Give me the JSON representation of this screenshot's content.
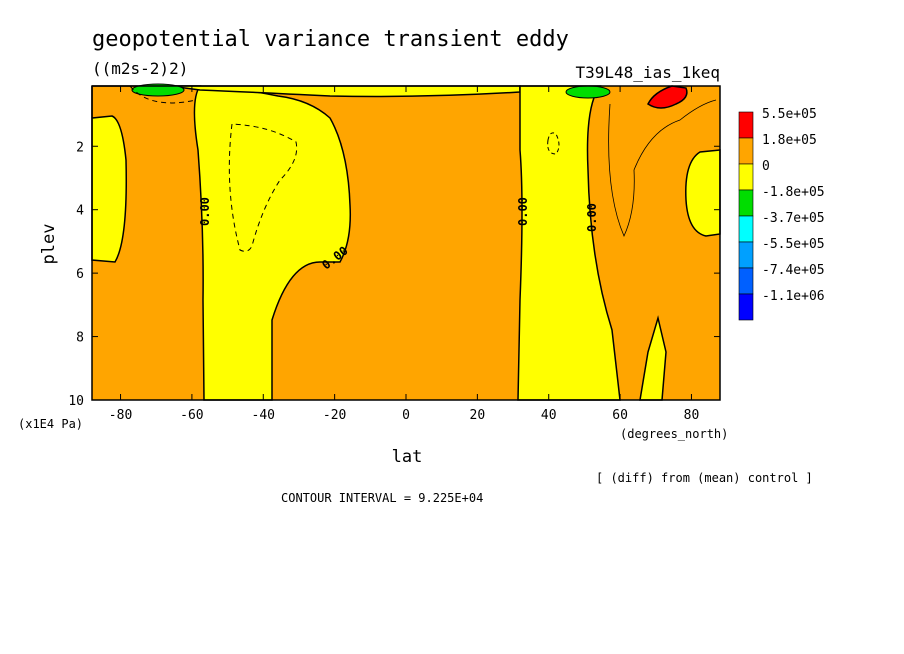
{
  "figure": {
    "title": "geopotential variance transient eddy",
    "units": "((m2s-2)2)",
    "run_id": "T39L48_ias_1keq",
    "contour_interval": "CONTOUR INTERVAL = 9.225E+04",
    "diff_note": "[ (diff) from (mean) control ]"
  },
  "chart_data": {
    "type": "heatmap",
    "title": "geopotential variance transient eddy",
    "xlabel": "lat",
    "xunits": "(degrees_north)",
    "ylabel": "plev",
    "yunits": "(x1E4 Pa)",
    "xlim": [
      -88,
      88
    ],
    "ylim": [
      10,
      0.1
    ],
    "x_ticks": [
      -80,
      -60,
      -40,
      -20,
      0,
      20,
      40,
      60,
      80
    ],
    "y_ticks": [
      2,
      4,
      6,
      8,
      10
    ],
    "contour_labels": [
      "0.00",
      "0.00",
      "0.00",
      "0.00"
    ],
    "legend": [
      {
        "label": "5.5e+05",
        "color": "#ff0000"
      },
      {
        "label": "1.8e+05",
        "color": "#ffa500"
      },
      {
        "label": "0",
        "color": "#ffff00"
      },
      {
        "label": "-1.8e+05",
        "color": "#00dd00"
      },
      {
        "label": "-3.7e+05",
        "color": "#00ffff"
      },
      {
        "label": "-5.5e+05",
        "color": "#00a0ff"
      },
      {
        "label": "-7.4e+05",
        "color": "#0060ff"
      },
      {
        "label": "-1.1e+06",
        "color": "#0000ff"
      }
    ],
    "fill_colors": {
      "positive": "#ffa500",
      "near_zero": "#ffff00",
      "max": "#ff0000",
      "min": "#00dd00"
    }
  }
}
